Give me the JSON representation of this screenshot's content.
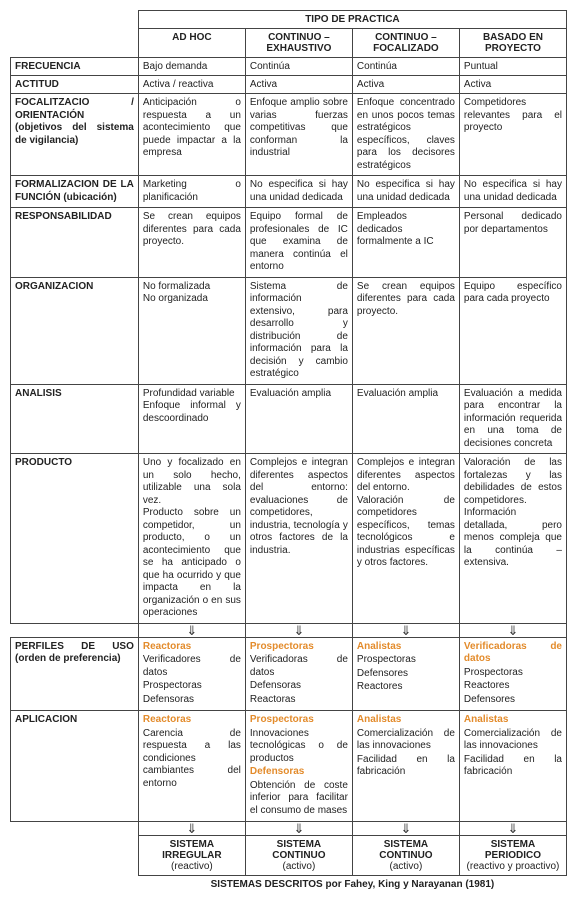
{
  "header": {
    "tipo": "TIPO DE PRACTICA",
    "cols": [
      "AD HOC",
      "CONTINUO – EXHAUSTIVO",
      "CONTINUO – FOCALIZADO",
      "BASADO EN PROYECTO"
    ]
  },
  "rows": {
    "frecuencia": {
      "label": "FRECUENCIA",
      "cells": [
        "Bajo demanda",
        "Continúa",
        "Continúa",
        "Puntual"
      ]
    },
    "actitud": {
      "label": "ACTITUD",
      "cells": [
        "Activa / reactiva",
        "Activa",
        "Activa",
        "Activa"
      ]
    },
    "focalitzacio": {
      "label": "FOCALITZACIO / ORIENTACIÓN (objetivos del sistema de vigilancia)",
      "cells": [
        "Anticipación o respuesta a un acontecimiento que puede impactar a la empresa",
        "Enfoque amplio sobre varias fuerzas competitivas que conforman la industrial",
        "Enfoque concentrado en unos pocos temas estratégicos específicos, claves para los decisores estratégicos",
        "Competidores relevantes para el proyecto"
      ]
    },
    "formalizacion": {
      "label": "FORMALIZACION DE LA FUNCIÓN (ubicación)",
      "cells": [
        "Marketing o planificación",
        "No especifica si hay una unidad dedicada",
        "No especifica si hay una unidad dedicada",
        "No especifica si hay una unidad dedicada"
      ]
    },
    "responsabilidad": {
      "label": "RESPONSABILIDAD",
      "cells": [
        "Se crean equipos diferentes para cada proyecto.",
        "Equipo formal de profesionales de IC que examina de manera continúa el entorno",
        "Empleados dedicados formalmente a IC",
        "Personal dedicado por departamentos"
      ]
    },
    "organizacion": {
      "label": "ORGANIZACION",
      "cells": [
        "No formalizada\nNo organizada",
        "Sistema de información extensivo, para desarrollo y distribución de información para la decisión y cambio estratégico",
        "Se crean equipos diferentes para cada proyecto.",
        "Equipo específico para cada proyecto"
      ]
    },
    "analisis": {
      "label": "ANALISIS",
      "cells": [
        "Profundidad variable\nEnfoque informal y descoordinado",
        "Evaluación amplia",
        "Evaluación amplia",
        "Evaluación a medida para encontrar la información requerida en una toma de decisiones concreta"
      ]
    },
    "producto": {
      "label": "PRODUCTO",
      "cells": [
        "Uno y focalizado en un solo hecho, utilizable una sola vez.\nProducto sobre un competidor, un producto, o un acontecimiento que se ha anticipado o que ha ocurrido y que impacta en la organización o en sus operaciones",
        "Complejos e integran diferentes aspectos del entorno: evaluaciones de competidores, industria, tecnología y otros factores de la industria.",
        "Complejos e integran diferentes aspectos del entorno.\nValoración de competidores específicos, temas tecnológicos e industrias específicas y otros factores.",
        "Valoración de las fortalezas y las debilidades de estos competidores.\nInformación detallada, pero menos compleja que la continúa – extensiva."
      ]
    }
  },
  "arrow": "⇓",
  "perfiles": {
    "label": "PERFILES DE USO (orden de preferencia)",
    "cells": [
      {
        "highlight": "Reactoras",
        "rest": [
          "Verificadores de datos",
          "Prospectoras",
          "Defensoras"
        ]
      },
      {
        "highlight": "Prospectoras",
        "rest": [
          "Verificadoras de datos",
          "Defensoras",
          "Reactoras"
        ]
      },
      {
        "highlight": "Analistas",
        "rest": [
          "Prospectoras",
          "Defensores",
          "Reactores"
        ]
      },
      {
        "highlight": "Verificadoras de datos",
        "rest": [
          "Prospectoras",
          "Reactores",
          "Defensores"
        ]
      }
    ]
  },
  "aplicacion": {
    "label": "APLICACION",
    "cells": [
      {
        "parts": [
          {
            "h": "Reactoras"
          },
          {
            "t": "Carencia de respuesta a las condiciones cambiantes del entorno"
          }
        ]
      },
      {
        "parts": [
          {
            "h": "Prospectoras"
          },
          {
            "t": "Innovaciones tecnológicas o de productos"
          },
          {
            "h": "Defensoras"
          },
          {
            "t": "Obtención de coste inferior para facilitar el consumo de mases"
          }
        ]
      },
      {
        "parts": [
          {
            "h": "Analistas"
          },
          {
            "t": "Comercialización de las innovaciones"
          },
          {
            "t": "Facilidad en la fabricación"
          }
        ]
      },
      {
        "parts": [
          {
            "h": "Analistas"
          },
          {
            "t": "Comercialización de las innovaciones"
          },
          {
            "t": "Facilidad en la fabricación"
          }
        ]
      }
    ]
  },
  "systems": {
    "cells": [
      {
        "title": "SISTEMA IRREGULAR",
        "sub": "(reactivo)"
      },
      {
        "title": "SISTEMA CONTINUO",
        "sub": "(activo)"
      },
      {
        "title": "SISTEMA CONTINUO",
        "sub": "(activo)"
      },
      {
        "title": "SISTEMA PERIODICO",
        "sub": "(reactivo y proactivo)"
      }
    ]
  },
  "footer": "SISTEMAS DESCRITOS por Fahey, King y Narayanan (1981)",
  "colors": {
    "orange": "#e38b2b"
  }
}
